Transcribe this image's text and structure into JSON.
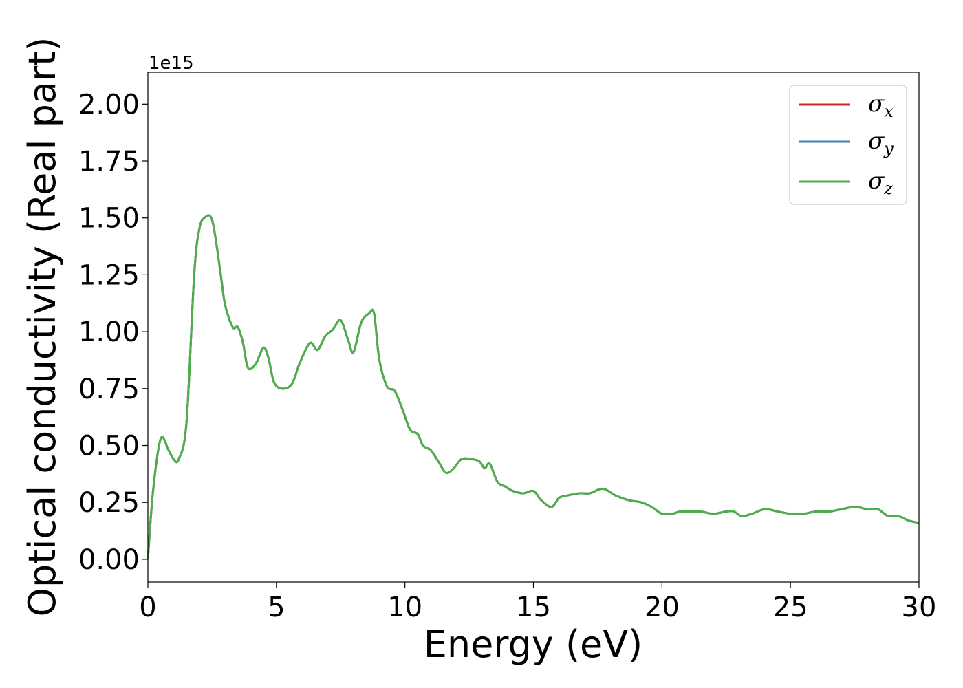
{
  "chart_data": {
    "type": "line",
    "xlabel": "Energy (eV)",
    "ylabel": "Optical conductivity (Real part)",
    "y_offset_label": "1e15",
    "xlim": [
      0,
      30
    ],
    "ylim": [
      -0.1,
      2.14
    ],
    "x_ticks": [
      0,
      5,
      10,
      15,
      20,
      25,
      30
    ],
    "x_tick_labels": [
      "0",
      "5",
      "10",
      "15",
      "20",
      "25",
      "30"
    ],
    "y_ticks": [
      0.0,
      0.25,
      0.5,
      0.75,
      1.0,
      1.25,
      1.5,
      1.75,
      2.0
    ],
    "y_tick_labels": [
      "0.00",
      "0.25",
      "0.50",
      "0.75",
      "1.00",
      "1.25",
      "1.50",
      "1.75",
      "2.00"
    ],
    "grid": false,
    "legend_position": "top-right",
    "series": [
      {
        "name": "σx",
        "symbol": "σ",
        "subscript": "x",
        "color": "#d62728"
      },
      {
        "name": "σy",
        "symbol": "σ",
        "subscript": "y",
        "color": "#3b7fb6"
      },
      {
        "name": "σz",
        "symbol": "σ",
        "subscript": "z",
        "color": "#4daf4a"
      }
    ],
    "x": [
      0,
      0.2,
      0.5,
      0.8,
      1.0,
      1.2,
      1.5,
      1.8,
      2.0,
      2.2,
      2.5,
      2.8,
      3.0,
      3.3,
      3.5,
      3.7,
      3.9,
      4.2,
      4.5,
      4.7,
      4.9,
      5.2,
      5.6,
      5.9,
      6.3,
      6.6,
      6.9,
      7.2,
      7.5,
      7.8,
      8.0,
      8.3,
      8.6,
      8.8,
      9.0,
      9.3,
      9.6,
      9.9,
      10.2,
      10.5,
      10.7,
      11.0,
      11.3,
      11.6,
      11.9,
      12.2,
      12.6,
      12.9,
      13.1,
      13.3,
      13.6,
      13.9,
      14.2,
      14.6,
      15.0,
      15.3,
      15.7,
      16.0,
      16.3,
      16.8,
      17.2,
      17.7,
      18.2,
      18.7,
      19.2,
      19.6,
      20.0,
      20.4,
      20.7,
      21.0,
      21.5,
      22.0,
      22.5,
      22.8,
      23.1,
      23.5,
      24.0,
      24.5,
      25.0,
      25.5,
      26.0,
      26.5,
      27.0,
      27.5,
      28.0,
      28.4,
      28.8,
      29.2,
      29.6,
      30.0
    ],
    "y": [
      0.0,
      0.3,
      0.53,
      0.48,
      0.44,
      0.44,
      0.6,
      1.25,
      1.45,
      1.5,
      1.49,
      1.28,
      1.12,
      1.02,
      1.02,
      0.95,
      0.84,
      0.86,
      0.93,
      0.88,
      0.78,
      0.75,
      0.77,
      0.86,
      0.95,
      0.92,
      0.98,
      1.01,
      1.05,
      0.96,
      0.91,
      1.04,
      1.08,
      1.08,
      0.88,
      0.76,
      0.74,
      0.66,
      0.57,
      0.55,
      0.5,
      0.48,
      0.43,
      0.38,
      0.4,
      0.44,
      0.44,
      0.43,
      0.4,
      0.42,
      0.34,
      0.32,
      0.3,
      0.29,
      0.3,
      0.26,
      0.23,
      0.27,
      0.28,
      0.29,
      0.29,
      0.31,
      0.28,
      0.26,
      0.25,
      0.23,
      0.2,
      0.2,
      0.21,
      0.21,
      0.21,
      0.2,
      0.21,
      0.21,
      0.19,
      0.2,
      0.22,
      0.21,
      0.2,
      0.2,
      0.21,
      0.21,
      0.22,
      0.23,
      0.22,
      0.22,
      0.19,
      0.19,
      0.17,
      0.16
    ]
  }
}
